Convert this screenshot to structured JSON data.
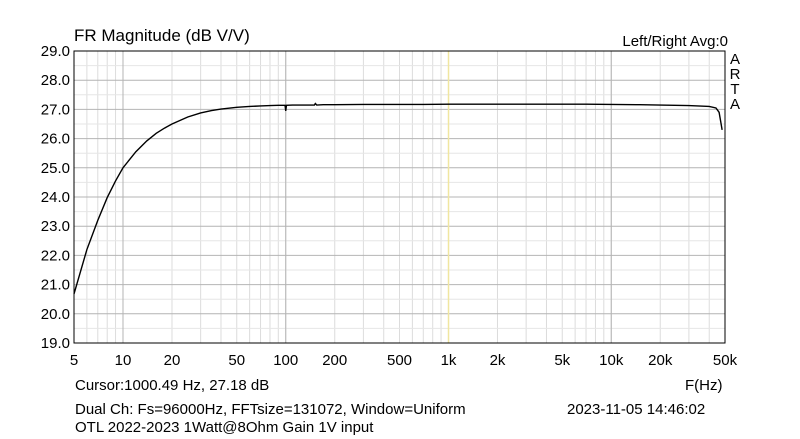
{
  "chart_data": {
    "type": "line",
    "title": "FR Magnitude (dB V/V)",
    "channel_label": "Left/Right  Avg:0",
    "logo_text": "ARTA",
    "xlabel": "F(Hz)",
    "x_scale": "log",
    "xlim": [
      5,
      50000
    ],
    "ylim": [
      19.0,
      29.0
    ],
    "x_ticks": [
      {
        "v": 5,
        "label": "5"
      },
      {
        "v": 10,
        "label": "10"
      },
      {
        "v": 20,
        "label": "20"
      },
      {
        "v": 50,
        "label": "50"
      },
      {
        "v": 100,
        "label": "100"
      },
      {
        "v": 200,
        "label": "200"
      },
      {
        "v": 500,
        "label": "500"
      },
      {
        "v": 1000,
        "label": "1k"
      },
      {
        "v": 2000,
        "label": "2k"
      },
      {
        "v": 5000,
        "label": "5k"
      },
      {
        "v": 10000,
        "label": "10k"
      },
      {
        "v": 20000,
        "label": "20k"
      },
      {
        "v": 50000,
        "label": "50k"
      }
    ],
    "y_ticks": [
      {
        "v": 19.0,
        "label": "19.0"
      },
      {
        "v": 20.0,
        "label": "20.0"
      },
      {
        "v": 21.0,
        "label": "21.0"
      },
      {
        "v": 22.0,
        "label": "22.0"
      },
      {
        "v": 23.0,
        "label": "23.0"
      },
      {
        "v": 24.0,
        "label": "24.0"
      },
      {
        "v": 25.0,
        "label": "25.0"
      },
      {
        "v": 26.0,
        "label": "26.0"
      },
      {
        "v": 27.0,
        "label": "27.0"
      },
      {
        "v": 28.0,
        "label": "28.0"
      },
      {
        "v": 29.0,
        "label": "29.0"
      }
    ],
    "grid": true,
    "cursor_x": 1000.49,
    "cursor_color": "#f0e6a0",
    "series": [
      {
        "color": "#000000",
        "x": [
          5,
          6,
          7,
          8,
          9,
          10,
          12,
          14,
          16,
          18,
          20,
          25,
          30,
          35,
          40,
          50,
          60,
          70,
          80,
          90,
          99,
          100,
          101,
          110,
          130,
          150,
          152,
          155,
          170,
          200,
          300,
          500,
          700,
          1000,
          1500,
          2000,
          3000,
          5000,
          7000,
          10000,
          15000,
          20000,
          30000,
          40000,
          44000,
          46000,
          47000,
          48000
        ],
        "y": [
          20.68,
          22.2,
          23.2,
          23.98,
          24.55,
          25.0,
          25.55,
          25.92,
          26.18,
          26.36,
          26.5,
          26.74,
          26.88,
          26.96,
          27.01,
          27.07,
          27.1,
          27.12,
          27.13,
          27.14,
          27.14,
          26.95,
          27.14,
          27.15,
          27.15,
          27.15,
          27.2,
          27.15,
          27.16,
          27.16,
          27.17,
          27.17,
          27.17,
          27.18,
          27.18,
          27.18,
          27.18,
          27.18,
          27.18,
          27.17,
          27.16,
          27.15,
          27.13,
          27.1,
          27.05,
          26.9,
          26.6,
          26.3
        ]
      }
    ]
  },
  "footer": {
    "cursor_readout": "Cursor:1000.49 Hz, 27.18 dB",
    "measurement_info": "Dual Ch: Fs=96000Hz, FFTsize=131072, Window=Uniform",
    "timestamp": "2023-11-05  14:46:02",
    "note": "OTL 2022-2023 1Watt@8Ohm Gain 1V input"
  }
}
